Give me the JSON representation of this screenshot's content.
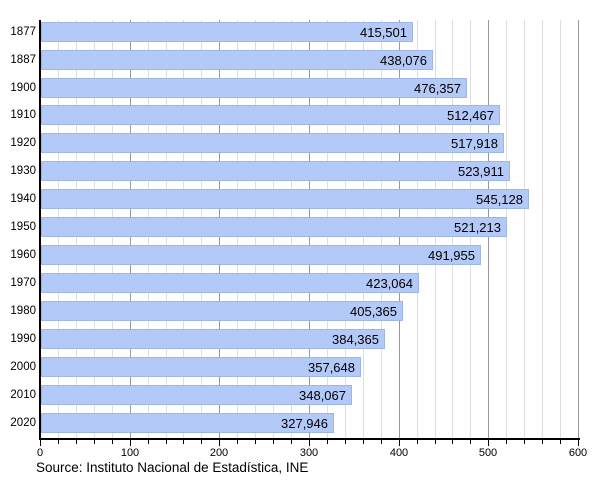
{
  "chart_data": {
    "type": "bar",
    "orientation": "horizontal",
    "title": "",
    "categories": [
      "1877",
      "1887",
      "1900",
      "1910",
      "1920",
      "1930",
      "1940",
      "1950",
      "1960",
      "1970",
      "1980",
      "1990",
      "2000",
      "2010",
      "2020"
    ],
    "values": [
      415501,
      438076,
      476357,
      512467,
      517918,
      523911,
      545128,
      521213,
      491955,
      423064,
      405365,
      384365,
      357648,
      348067,
      327946
    ],
    "value_labels": [
      "415,501",
      "438,076",
      "476,357",
      "512,467",
      "517,918",
      "523,911",
      "545,128",
      "521,213",
      "491,955",
      "423,064",
      "405,365",
      "384,365",
      "357,648",
      "348,067",
      "327,946"
    ],
    "xlabel": "",
    "ylabel": "",
    "x_axis": {
      "min": 0,
      "max": 600,
      "tick_labels": [
        "0",
        "100",
        "200",
        "300",
        "400",
        "500",
        "600"
      ],
      "major_step": 100,
      "minor_step": 20,
      "unit": "thousands"
    },
    "grid": "vertical-only",
    "legend": "none",
    "colors": {
      "bar_fill": "#b3c9f7",
      "bar_border": "#9fb5e6",
      "grid_minor": "#dedede",
      "grid_major": "#999999",
      "axis": "#000000",
      "text": "#000000"
    },
    "source_note": "Source: Instituto Nacional de Estadística, INE"
  }
}
